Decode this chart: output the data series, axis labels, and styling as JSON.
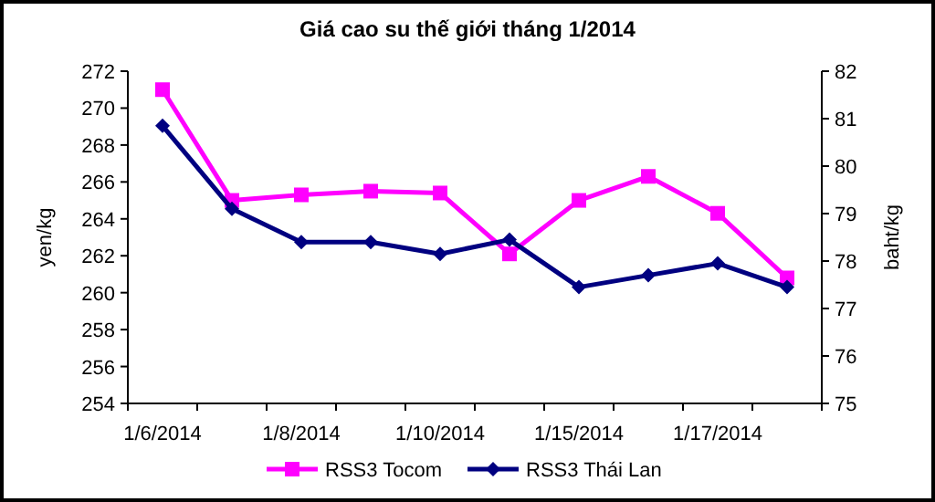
{
  "chart_data": {
    "type": "line",
    "title": "Giá cao su thế giới tháng 1/2014",
    "ylabel": "yen/kg",
    "y2label": "baht/kg",
    "categories": [
      "1/6/2014",
      null,
      "1/8/2014",
      null,
      "1/10/2014",
      null,
      "1/15/2014",
      null,
      "1/17/2014",
      null
    ],
    "series": [
      {
        "name": "RSS3 Tocom",
        "color": "#ff00ff",
        "marker": "square",
        "values": [
          271,
          265,
          265.3,
          265.5,
          265.4,
          262.1,
          265,
          266.3,
          264.3,
          260.8
        ]
      },
      {
        "name": "RSS3 Thái Lan",
        "color": "#000080",
        "marker": "diamond",
        "axis": "y2",
        "values": [
          80.85,
          79.1,
          78.4,
          78.4,
          78.15,
          78.45,
          77.45,
          77.7,
          77.95,
          77.45
        ]
      }
    ],
    "ylim": [
      254,
      272
    ],
    "yticks": [
      254,
      256,
      258,
      260,
      262,
      264,
      266,
      268,
      270,
      272
    ],
    "y2lim": [
      75,
      82
    ],
    "y2ticks": [
      75,
      76,
      77,
      78,
      79,
      80,
      81,
      82
    ],
    "grid": false,
    "legend": "bottom"
  }
}
